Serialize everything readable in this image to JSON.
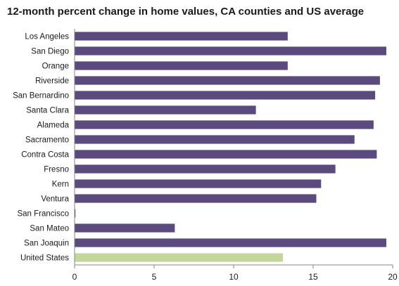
{
  "chart_data": {
    "type": "bar",
    "orientation": "horizontal",
    "title": "12-month percent change in home values, CA counties and US average",
    "categories": [
      "Los Angeles",
      "San Diego",
      "Orange",
      "Riverside",
      "San Bernardino",
      "Santa Clara",
      "Alameda",
      "Sacramento",
      "Contra Costa",
      "Fresno",
      "Kern",
      "Ventura",
      "San Francisco",
      "San Mateo",
      "San Joaquin",
      "United States"
    ],
    "values": [
      13.4,
      19.6,
      13.4,
      19.2,
      18.9,
      11.4,
      18.8,
      17.6,
      19.0,
      16.4,
      15.5,
      15.2,
      0.0,
      6.3,
      19.6,
      13.1
    ],
    "xlim": [
      0,
      20
    ],
    "xticks": [
      "0",
      "5",
      "10",
      "15",
      "20"
    ],
    "xlabel": "",
    "ylabel": "",
    "grid": false,
    "legend": "none",
    "colors": {
      "bar": "#5b4a7d",
      "highlight": "#c4d79b",
      "axis": "#868686"
    },
    "highlight_category": "United States"
  }
}
